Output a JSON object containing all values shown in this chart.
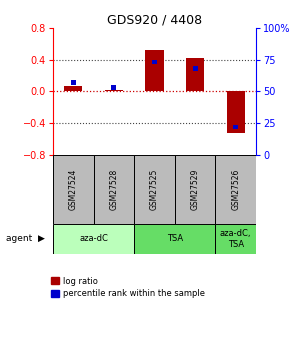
{
  "title": "GDS920 / 4408",
  "samples": [
    "GSM27524",
    "GSM27528",
    "GSM27525",
    "GSM27529",
    "GSM27526"
  ],
  "log_ratios": [
    0.07,
    0.02,
    0.52,
    0.42,
    -0.52
  ],
  "percentile_ranks": [
    57,
    53,
    73,
    68,
    22
  ],
  "ylim": [
    -0.8,
    0.8
  ],
  "bar_color_red": "#aa0000",
  "bar_color_blue": "#0000cc",
  "dotted_line_color": "#555555",
  "zero_line_color": "#cc0000",
  "legend_red_label": "log ratio",
  "legend_blue_label": "percentile rank within the sample",
  "sample_box_color": "#bbbbbb",
  "agent_group1_color": "#bbffbb",
  "agent_group2_color": "#66dd66",
  "background_color": "#ffffff",
  "agent_groups": [
    {
      "label": "aza-dC",
      "start": 0,
      "end": 2,
      "color": "#bbffbb"
    },
    {
      "label": "TSA",
      "start": 2,
      "end": 4,
      "color": "#66dd66"
    },
    {
      "label": "aza-dC,\nTSA",
      "start": 4,
      "end": 5,
      "color": "#66dd66"
    }
  ]
}
